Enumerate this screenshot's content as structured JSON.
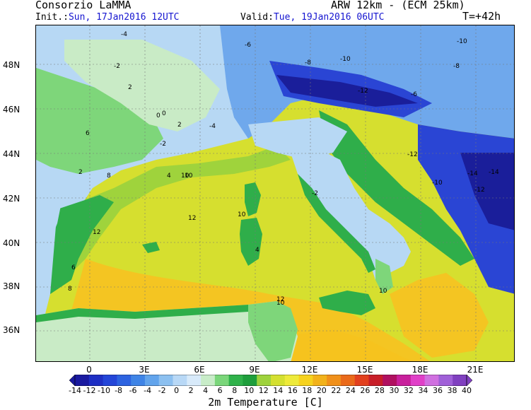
{
  "header": {
    "org": "Consorzio LaMMA",
    "model": "ARW 12km - (ECM 25km)",
    "init_label": "Init.:",
    "init_value": "Sun, 17Jan2016 12UTC",
    "valid_label": "Valid:",
    "valid_value": "Tue, 19Jan2016 06UTC",
    "lead": "T=+42h"
  },
  "axes": {
    "lat_labels": [
      "48N",
      "46N",
      "44N",
      "42N",
      "40N",
      "38N",
      "36N"
    ],
    "lon_labels": [
      "0",
      "3E",
      "6E",
      "9E",
      "12E",
      "15E",
      "18E",
      "21E"
    ]
  },
  "colorbar": {
    "title": "2m Temperature [C]",
    "labels": [
      "-14",
      "-12",
      "-10",
      "-8",
      "-6",
      "-4",
      "-2",
      "0",
      "2",
      "4",
      "6",
      "8",
      "10",
      "12",
      "14",
      "16",
      "18",
      "20",
      "22",
      "24",
      "26",
      "28",
      "30",
      "32",
      "34",
      "36",
      "38",
      "40"
    ],
    "colors": [
      "#1a1aa0",
      "#1e2fc4",
      "#2446d8",
      "#2d63e0",
      "#3f84e6",
      "#62a4ec",
      "#8cc0f0",
      "#b8d8f6",
      "#d8eafa",
      "#c8ecc8",
      "#7ad67a",
      "#2fb24a",
      "#1e9e3c",
      "#9ed23c",
      "#d4e030",
      "#eeea3a",
      "#f6d21e",
      "#f2b21a",
      "#f0901a",
      "#ea6a1a",
      "#e2401e",
      "#c81e28",
      "#b01060",
      "#c8209c",
      "#e040c8",
      "#d070e0",
      "#a060d8",
      "#8040c0"
    ]
  },
  "map": {
    "colors": {
      "sea_warm": "#f4c522",
      "sea_mid": "#d6df2f",
      "sea_cool": "#9fd33c",
      "coast_green": "#2fae4a",
      "land_green": "#7ed67a",
      "land_pale": "#c9ebc6",
      "land_lightblue": "#b7d8f4",
      "land_blue": "#6fa8ec",
      "land_darkblue": "#2a45d4",
      "land_navy": "#1a1e9a"
    },
    "contour_labels": [
      "-4",
      "-2",
      "0",
      "2",
      "-6",
      "-8",
      "-10",
      "-12",
      "-14",
      "2",
      "4",
      "6",
      "8",
      "10",
      "12",
      "10",
      "12",
      "2",
      "0",
      "-2",
      "-4",
      "-10",
      "-12",
      "-8",
      "-6",
      "4",
      "6",
      "8",
      "10",
      "-2",
      "-10",
      "-12",
      "-14",
      "10",
      "12",
      "10"
    ]
  }
}
